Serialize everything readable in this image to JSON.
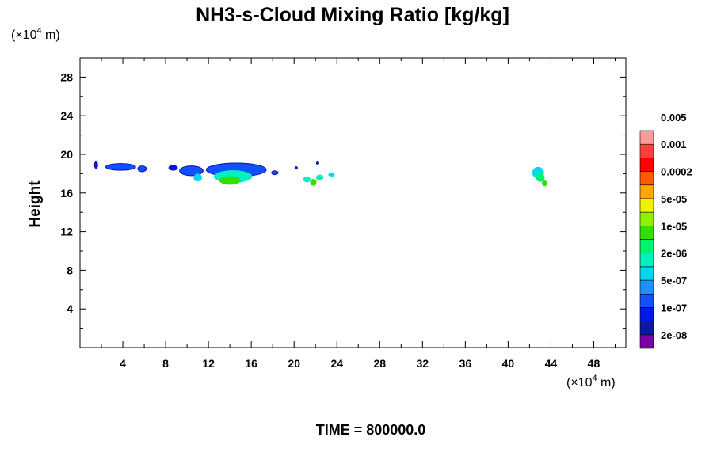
{
  "chart_data": {
    "type": "heatmap",
    "title": "NH3-s-Cloud Mixing Ratio [kg/kg]",
    "ylabel": "Height",
    "x_unit": {
      "prefix": "(×10",
      "exp": "4",
      "suffix": " m)"
    },
    "y_unit": {
      "prefix": "(×10",
      "exp": "4",
      "suffix": " m)"
    },
    "xlim": [
      0,
      51
    ],
    "ylim": [
      0,
      30
    ],
    "x_ticks": [
      4,
      8,
      12,
      16,
      20,
      24,
      28,
      32,
      36,
      40,
      44,
      48
    ],
    "x_tick_labels": [
      "4",
      "8",
      "12",
      "16",
      "20",
      "24",
      "28",
      "32",
      "36",
      "40",
      "44",
      "48"
    ],
    "y_ticks": [
      4,
      8,
      12,
      16,
      20,
      24,
      28
    ],
    "y_tick_labels": [
      "4",
      "8",
      "12",
      "16",
      "20",
      "24",
      "28"
    ],
    "colorbar": {
      "colors": [
        "#7a00a8",
        "#0a1a9c",
        "#0018e8",
        "#1050ff",
        "#1e90ff",
        "#00d8f0",
        "#00f0c0",
        "#00f070",
        "#30e000",
        "#90f000",
        "#f0f000",
        "#ffa800",
        "#ff5a00",
        "#ff0000",
        "#ff4040",
        "#ff9a9a"
      ],
      "labels": [
        "2e-08",
        "1e-07",
        "5e-07",
        "2e-06",
        "1e-05",
        "5e-05",
        "0.0002",
        "0.001",
        "0.005"
      ]
    },
    "cloud_blobs": [
      {
        "x": 1.5,
        "y": 18.9,
        "rx": 0.15,
        "ry": 0.35,
        "level": 2
      },
      {
        "x": 3.8,
        "y": 18.7,
        "rx": 1.4,
        "ry": 0.35,
        "level": 3
      },
      {
        "x": 5.8,
        "y": 18.5,
        "rx": 0.4,
        "ry": 0.3,
        "level": 3
      },
      {
        "x": 8.7,
        "y": 18.6,
        "rx": 0.4,
        "ry": 0.25,
        "level": 2
      },
      {
        "x": 10.4,
        "y": 18.3,
        "rx": 1.1,
        "ry": 0.5,
        "level": 3
      },
      {
        "x": 11.0,
        "y": 17.6,
        "rx": 0.4,
        "ry": 0.4,
        "level": 5
      },
      {
        "x": 14.6,
        "y": 18.4,
        "rx": 2.8,
        "ry": 0.7,
        "level": 3
      },
      {
        "x": 14.3,
        "y": 17.7,
        "rx": 1.8,
        "ry": 0.65,
        "level": 6
      },
      {
        "x": 14.0,
        "y": 17.3,
        "rx": 1.0,
        "ry": 0.45,
        "level": 8
      },
      {
        "x": 18.2,
        "y": 18.1,
        "rx": 0.3,
        "ry": 0.2,
        "level": 3
      },
      {
        "x": 20.2,
        "y": 18.6,
        "rx": 0.1,
        "ry": 0.1,
        "level": 1
      },
      {
        "x": 21.2,
        "y": 17.4,
        "rx": 0.35,
        "ry": 0.3,
        "level": 6
      },
      {
        "x": 21.8,
        "y": 17.1,
        "rx": 0.3,
        "ry": 0.35,
        "level": 8
      },
      {
        "x": 22.4,
        "y": 17.6,
        "rx": 0.35,
        "ry": 0.3,
        "level": 6
      },
      {
        "x": 23.5,
        "y": 17.9,
        "rx": 0.3,
        "ry": 0.2,
        "level": 5
      },
      {
        "x": 22.2,
        "y": 19.1,
        "rx": 0.1,
        "ry": 0.1,
        "level": 1
      },
      {
        "x": 42.8,
        "y": 18.1,
        "rx": 0.55,
        "ry": 0.6,
        "level": 5
      },
      {
        "x": 43.0,
        "y": 17.6,
        "rx": 0.4,
        "ry": 0.45,
        "level": 7
      },
      {
        "x": 43.4,
        "y": 17.0,
        "rx": 0.25,
        "ry": 0.3,
        "level": 8
      }
    ],
    "bottom_label": "TIME = 800000.0"
  }
}
